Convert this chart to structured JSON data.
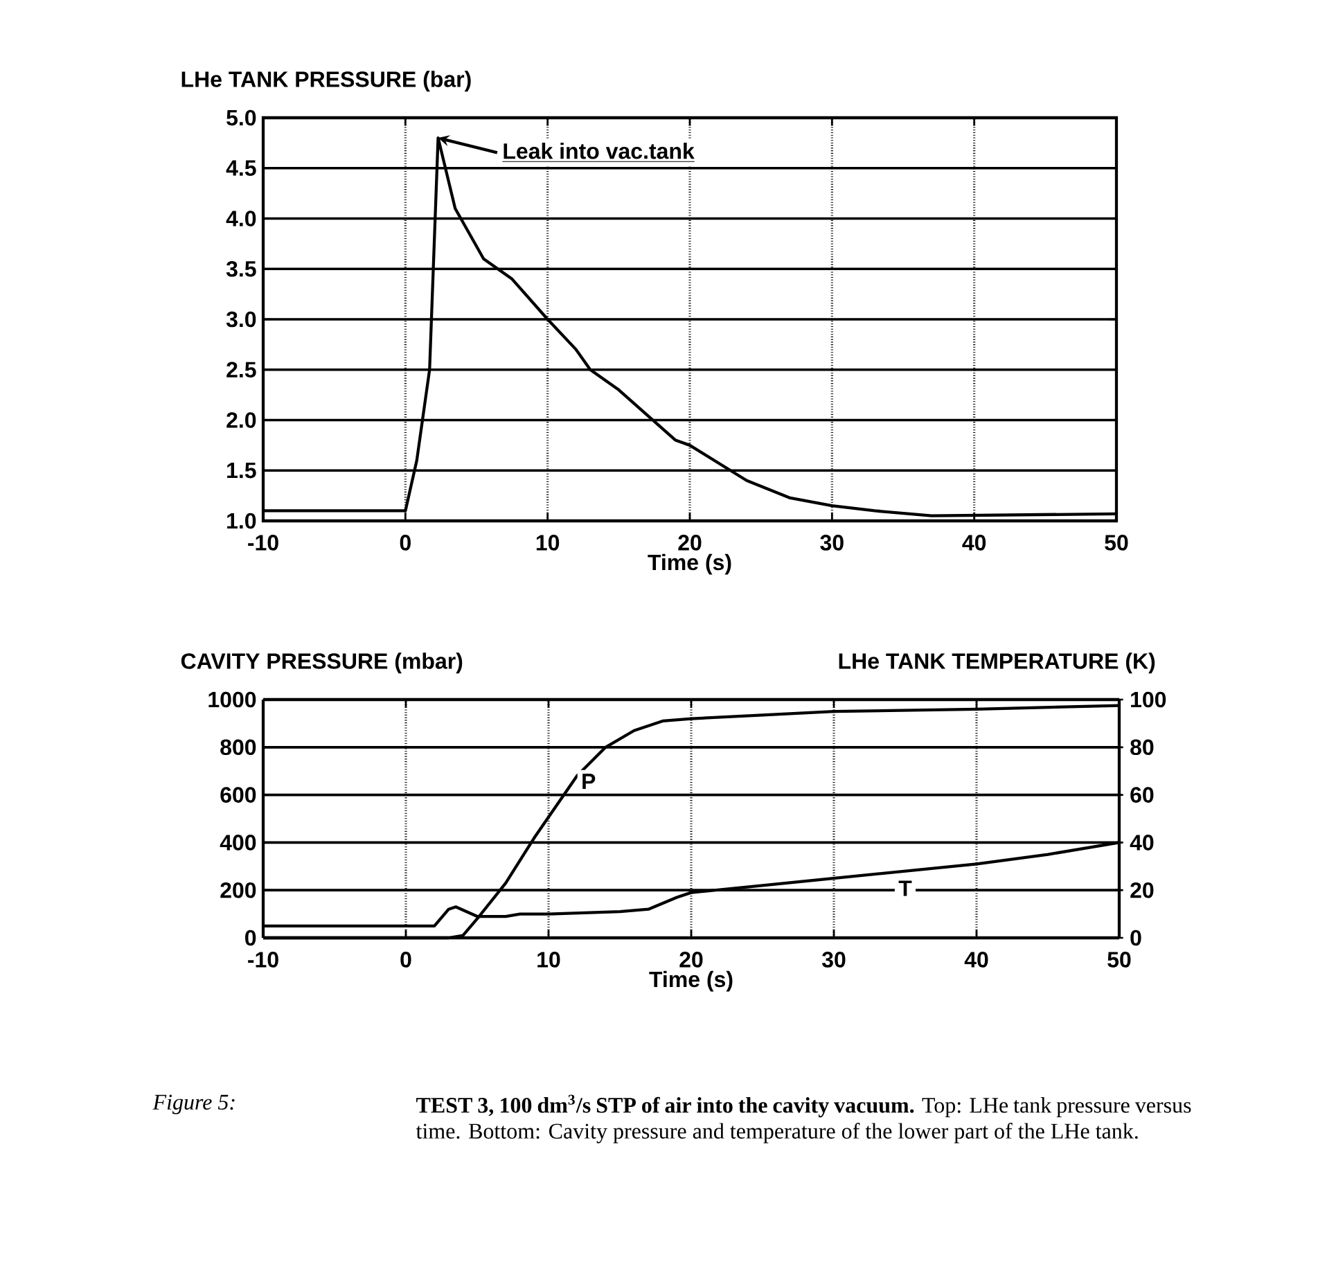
{
  "chart_data": [
    {
      "type": "line",
      "ylabel": "LHe TANK PRESSURE (bar)",
      "xlabel": "Time (s)",
      "xlim": [
        -10,
        50
      ],
      "xticks": [
        -10,
        0,
        10,
        20,
        30,
        40,
        50
      ],
      "ylim": [
        1,
        5
      ],
      "yticks": [
        {
          "value": 1,
          "label": "1.0"
        },
        1.5,
        {
          "value": 2,
          "label": "2.0"
        },
        2.5,
        {
          "value": 3,
          "label": "3.0"
        },
        3.5,
        {
          "value": 4,
          "label": "4.0"
        },
        4.5,
        {
          "value": 5,
          "label": "5.0"
        }
      ],
      "grid": true,
      "color": "#000000",
      "x": [
        -10,
        0,
        0.8,
        1.7,
        2.3,
        3.5,
        5.5,
        7.5,
        10,
        12,
        13,
        15,
        19,
        20,
        24,
        27,
        30,
        33,
        37,
        50
      ],
      "values": [
        1.1,
        1.1,
        1.6,
        2.5,
        4.8,
        4.1,
        3.6,
        3.4,
        3.0,
        2.7,
        2.5,
        2.3,
        1.8,
        1.75,
        1.4,
        1.23,
        1.15,
        1.1,
        1.05,
        1.07
      ],
      "annotations": [
        {
          "text": "Leak into vac.tank",
          "x": 2.3,
          "y": 4.8
        }
      ]
    },
    {
      "type": "line",
      "ylabel": "CAVITY PRESSURE (mbar)",
      "y2label": "LHe TANK TEMPERATURE (K)",
      "xlabel": "Time (s)",
      "xlim": [
        -10,
        50
      ],
      "xticks": [
        -10,
        0,
        10,
        20,
        30,
        40,
        50
      ],
      "ylim": [
        0,
        1000
      ],
      "yticks": [
        0,
        200,
        400,
        600,
        800,
        1000
      ],
      "y2lim": [
        0,
        100
      ],
      "y2ticks": [
        0,
        20,
        40,
        60,
        80,
        100
      ],
      "grid": true,
      "series": [
        {
          "name": "P",
          "color": "#000000",
          "x": [
            -10,
            3,
            4,
            5,
            7,
            9,
            12,
            14,
            16,
            18,
            20,
            25,
            30,
            40,
            50
          ],
          "values": [
            0,
            0,
            10,
            80,
            230,
            420,
            680,
            800,
            870,
            910,
            920,
            935,
            950,
            960,
            975
          ]
        },
        {
          "name": "T",
          "color": "#000000",
          "axis": "y2",
          "x": [
            -10,
            2,
            3,
            3.5,
            5,
            7,
            8,
            10,
            15,
            17,
            19,
            20,
            25,
            30,
            35,
            40,
            45,
            50
          ],
          "values": [
            5,
            5,
            12,
            13,
            9,
            9,
            10,
            10,
            11,
            12,
            17,
            19,
            22,
            25,
            28,
            31,
            35,
            40
          ]
        }
      ],
      "annotations": [
        "*Figure 5:*",
        "**TEST 3, 100 dm$^{3}$/s STP of air into the cavity vacuum.** Top: LHe tank pressure versus time. Bottom: Cavity pressure and temperature of the lower part of the LHe tank."
      ]
    }
  ]
}
